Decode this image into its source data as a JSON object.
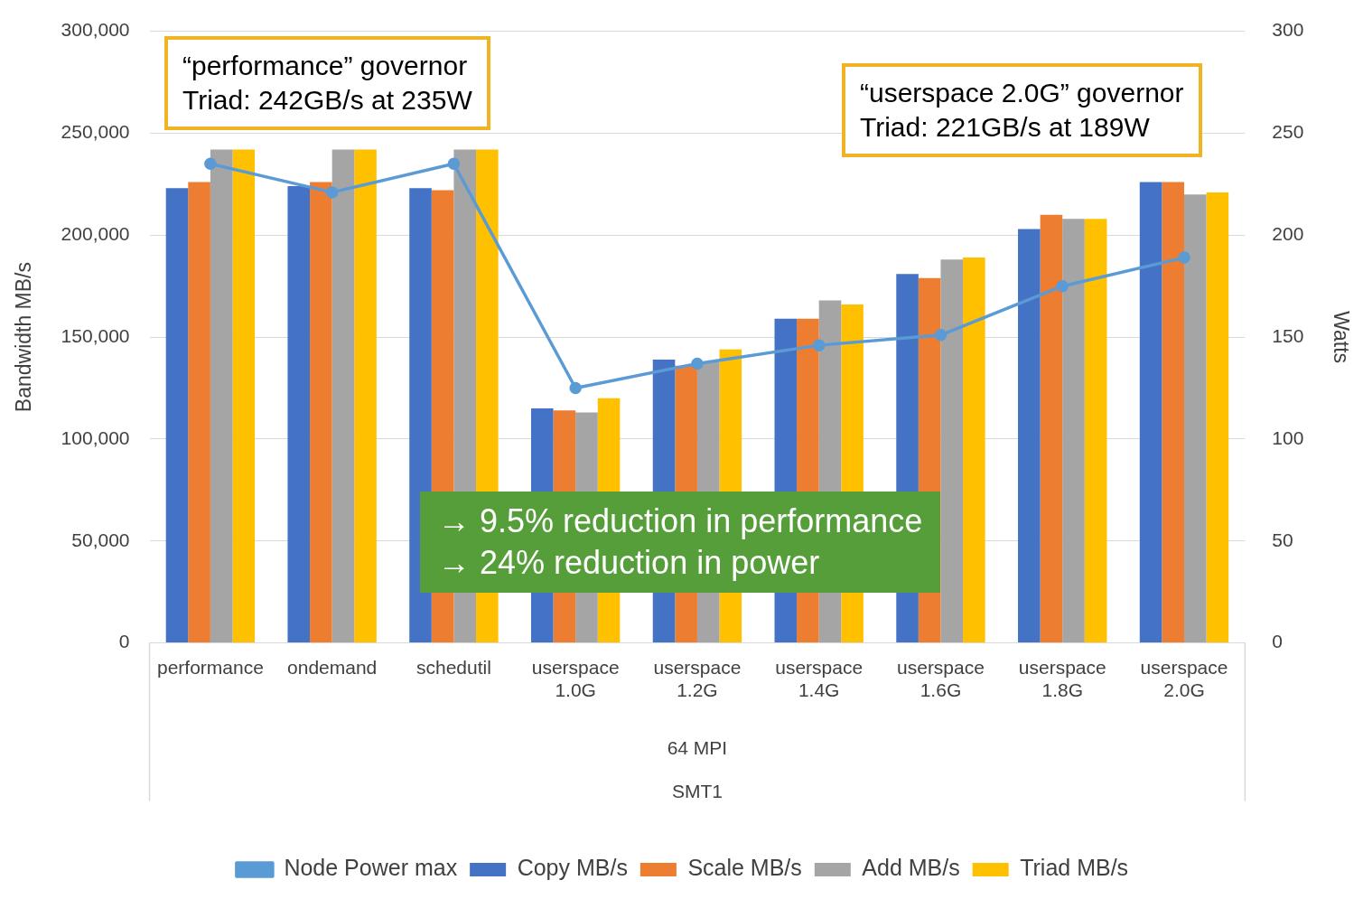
{
  "chart_data": {
    "type": "bar",
    "ylabel": "Bandwidth MB/s",
    "y2label": "Watts",
    "categories": [
      "performance",
      "ondemand",
      "schedutil",
      "userspace 1.0G",
      "userspace 1.2G",
      "userspace 1.4G",
      "userspace 1.6G",
      "userspace 1.8G",
      "userspace 2.0G"
    ],
    "series": [
      {
        "name": "Copy MB/s",
        "color": "#4472c4",
        "values": [
          223000,
          224000,
          223000,
          115000,
          139000,
          159000,
          181000,
          203000,
          226000
        ]
      },
      {
        "name": "Scale MB/s",
        "color": "#ed7d31",
        "values": [
          226000,
          226000,
          222000,
          114000,
          136000,
          159000,
          179000,
          210000,
          226000
        ]
      },
      {
        "name": "Add MB/s",
        "color": "#a5a5a5",
        "values": [
          242000,
          242000,
          242000,
          113000,
          138000,
          168000,
          188000,
          208000,
          220000
        ]
      },
      {
        "name": "Triad MB/s",
        "color": "#ffc000",
        "values": [
          242000,
          242000,
          242000,
          120000,
          144000,
          166000,
          189000,
          208000,
          221000
        ]
      },
      {
        "name": "Node Power max",
        "type": "line",
        "axis": "y2",
        "color": "#5b9bd5",
        "marker": "circle",
        "values": [
          235,
          221,
          235,
          125,
          137,
          146,
          151,
          175,
          189
        ]
      }
    ],
    "ylim": [
      0,
      300000
    ],
    "yticks": [
      {
        "value": 0,
        "label": "0"
      },
      {
        "value": 50000,
        "label": "50,000"
      },
      {
        "value": 100000,
        "label": "100,000"
      },
      {
        "value": 150000,
        "label": "150,000"
      },
      {
        "value": 200000,
        "label": "200,000"
      },
      {
        "value": 250000,
        "label": "250,000"
      },
      {
        "value": 300000,
        "label": "300,000"
      }
    ],
    "y2lim": [
      0,
      300
    ],
    "y2ticks": [
      0,
      50,
      100,
      150,
      200,
      250,
      300
    ],
    "grid": "y",
    "legend": "bottom",
    "annotations": [
      "“performance” governor\nTriad: 242GB/s at 235W",
      "“userspace 2.0G” governor\nTriad: 221GB/s at 189W",
      "→ 9.5% reduction in performance\n→ 24% reduction in power",
      "64 MPI",
      "SMT1"
    ]
  }
}
